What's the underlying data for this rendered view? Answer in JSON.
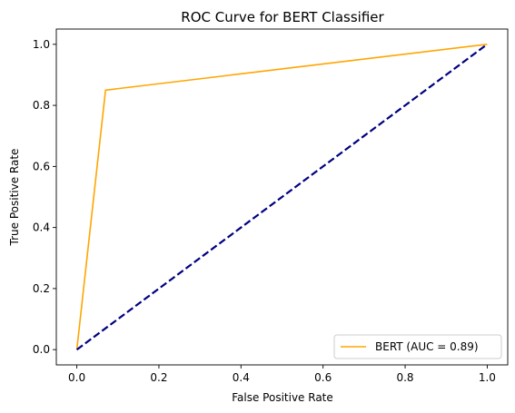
{
  "chart_data": {
    "type": "line",
    "title": "ROC Curve for BERT Classifier",
    "xlabel": "False Positive Rate",
    "ylabel": "True Positive Rate",
    "xlim": [
      -0.05,
      1.05
    ],
    "ylim": [
      -0.05,
      1.05
    ],
    "x_ticks": [
      "0.0",
      "0.2",
      "0.4",
      "0.6",
      "0.8",
      "1.0"
    ],
    "y_ticks": [
      "0.0",
      "0.2",
      "0.4",
      "0.6",
      "0.8",
      "1.0"
    ],
    "grid": false,
    "legend_position": "lower right",
    "series": [
      {
        "name": "BERT (AUC = 0.89)",
        "color": "#ffa500",
        "style": "solid",
        "x": [
          0.0,
          0.07,
          1.0
        ],
        "y": [
          0.0,
          0.85,
          1.0
        ]
      },
      {
        "color": "#000080",
        "style": "dashed",
        "x": [
          0.0,
          1.0
        ],
        "y": [
          0.0,
          1.0
        ]
      }
    ]
  }
}
